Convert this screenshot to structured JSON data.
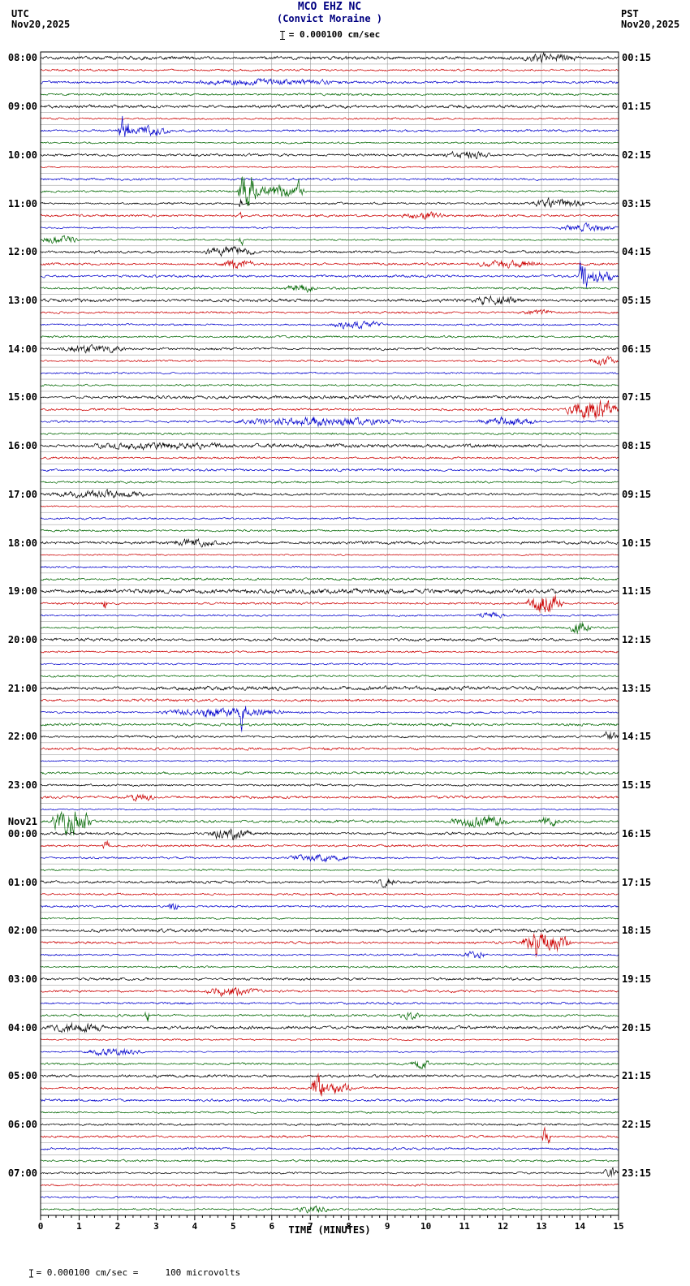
{
  "header": {
    "title": "MCO EHZ NC",
    "subtitle": "(Convict Moraine )",
    "left_tz": "UTC",
    "left_date": "Nov20,2025",
    "right_tz": "PST",
    "right_date": "Nov20,2025",
    "scale_text": "= 0.000100 cm/sec"
  },
  "footer": {
    "scale_note": "= 0.000100 cm/sec =     100 microvolts"
  },
  "colors": {
    "title": "#000080",
    "text": "#000000",
    "grid": "#8f8f8f",
    "border": "#000000"
  },
  "chart_data": {
    "type": "line",
    "title": "MCO EHZ NC (Convict Moraine) helicorder",
    "xlabel": "TIME (MINUTES)",
    "minutes_per_row": 15,
    "rows": 96,
    "rows_per_hour": 4,
    "x_ticks": [
      "0",
      "1",
      "2",
      "3",
      "4",
      "5",
      "6",
      "7",
      "8",
      "9",
      "10",
      "11",
      "12",
      "13",
      "14",
      "15"
    ],
    "trace_colors": [
      "#000000",
      "#cc0000",
      "#0000cc",
      "#006600"
    ],
    "left_labels": [
      {
        "row": 0,
        "text": "08:00"
      },
      {
        "row": 4,
        "text": "09:00"
      },
      {
        "row": 8,
        "text": "10:00"
      },
      {
        "row": 12,
        "text": "11:00"
      },
      {
        "row": 16,
        "text": "12:00"
      },
      {
        "row": 20,
        "text": "13:00"
      },
      {
        "row": 24,
        "text": "14:00"
      },
      {
        "row": 28,
        "text": "15:00"
      },
      {
        "row": 32,
        "text": "16:00"
      },
      {
        "row": 36,
        "text": "17:00"
      },
      {
        "row": 40,
        "text": "18:00"
      },
      {
        "row": 44,
        "text": "19:00"
      },
      {
        "row": 48,
        "text": "20:00"
      },
      {
        "row": 52,
        "text": "21:00"
      },
      {
        "row": 56,
        "text": "22:00"
      },
      {
        "row": 60,
        "text": "23:00"
      },
      {
        "row": 63,
        "text": "Nov21"
      },
      {
        "row": 64,
        "text": "00:00"
      },
      {
        "row": 68,
        "text": "01:00"
      },
      {
        "row": 72,
        "text": "02:00"
      },
      {
        "row": 76,
        "text": "03:00"
      },
      {
        "row": 80,
        "text": "04:00"
      },
      {
        "row": 84,
        "text": "05:00"
      },
      {
        "row": 88,
        "text": "06:00"
      },
      {
        "row": 92,
        "text": "07:00"
      }
    ],
    "right_labels": [
      {
        "row": 0,
        "text": "00:15"
      },
      {
        "row": 4,
        "text": "01:15"
      },
      {
        "row": 8,
        "text": "02:15"
      },
      {
        "row": 12,
        "text": "03:15"
      },
      {
        "row": 16,
        "text": "04:15"
      },
      {
        "row": 20,
        "text": "05:15"
      },
      {
        "row": 24,
        "text": "06:15"
      },
      {
        "row": 28,
        "text": "07:15"
      },
      {
        "row": 32,
        "text": "08:15"
      },
      {
        "row": 36,
        "text": "09:15"
      },
      {
        "row": 40,
        "text": "10:15"
      },
      {
        "row": 44,
        "text": "11:15"
      },
      {
        "row": 48,
        "text": "12:15"
      },
      {
        "row": 52,
        "text": "13:15"
      },
      {
        "row": 56,
        "text": "14:15"
      },
      {
        "row": 60,
        "text": "15:15"
      },
      {
        "row": 64,
        "text": "16:15"
      },
      {
        "row": 68,
        "text": "17:15"
      },
      {
        "row": 72,
        "text": "18:15"
      },
      {
        "row": 76,
        "text": "19:15"
      },
      {
        "row": 80,
        "text": "20:15"
      },
      {
        "row": 84,
        "text": "21:15"
      },
      {
        "row": 88,
        "text": "22:15"
      },
      {
        "row": 92,
        "text": "23:15"
      }
    ],
    "note": "96 fifteen-minute noise traces; visible bursts/spikes approximated below (row, start minute, duration min, amplitude px)",
    "events": [
      {
        "r": 0,
        "m": 12.5,
        "d": 1.5,
        "a": 2.5
      },
      {
        "r": 2,
        "m": 4.0,
        "d": 4.0,
        "a": 1.8
      },
      {
        "r": 6,
        "m": 2.0,
        "d": 0.35,
        "a": 11
      },
      {
        "r": 6,
        "m": 2.1,
        "d": 1.3,
        "a": 3.5
      },
      {
        "r": 8,
        "m": 10.4,
        "d": 1.3,
        "a": 2.2
      },
      {
        "r": 11,
        "m": 5.1,
        "d": 0.5,
        "a": 14
      },
      {
        "r": 11,
        "m": 5.3,
        "d": 1.6,
        "a": 4.5
      },
      {
        "r": 11,
        "m": 6.65,
        "d": 0.18,
        "a": 7
      },
      {
        "r": 12,
        "m": 12.6,
        "d": 1.6,
        "a": 3
      },
      {
        "r": 12,
        "m": 5.15,
        "d": 0.1,
        "a": 5
      },
      {
        "r": 13,
        "m": 9.3,
        "d": 1.2,
        "a": 2.5
      },
      {
        "r": 13,
        "m": 5.15,
        "d": 0.08,
        "a": 4
      },
      {
        "r": 14,
        "m": 13.4,
        "d": 1.6,
        "a": 2.5
      },
      {
        "r": 15,
        "m": 0.0,
        "d": 1.0,
        "a": 3
      },
      {
        "r": 15,
        "m": 5.15,
        "d": 0.12,
        "a": 6
      },
      {
        "r": 16,
        "m": 4.2,
        "d": 1.4,
        "a": 3.5
      },
      {
        "r": 17,
        "m": 4.6,
        "d": 1.0,
        "a": 3
      },
      {
        "r": 17,
        "m": 11.3,
        "d": 1.8,
        "a": 2.5
      },
      {
        "r": 18,
        "m": 13.95,
        "d": 0.25,
        "a": 12
      },
      {
        "r": 18,
        "m": 14.05,
        "d": 0.9,
        "a": 4
      },
      {
        "r": 19,
        "m": 6.3,
        "d": 0.9,
        "a": 3
      },
      {
        "r": 20,
        "m": 11.2,
        "d": 1.3,
        "a": 3
      },
      {
        "r": 21,
        "m": 12.5,
        "d": 0.8,
        "a": 2
      },
      {
        "r": 22,
        "m": 7.5,
        "d": 1.4,
        "a": 2.5
      },
      {
        "r": 24,
        "m": 0.5,
        "d": 1.8,
        "a": 2.5
      },
      {
        "r": 25,
        "m": 14.2,
        "d": 0.8,
        "a": 3
      },
      {
        "r": 28,
        "m": 0,
        "d": 15,
        "a": 0.6
      },
      {
        "r": 29,
        "m": 13.6,
        "d": 1.4,
        "a": 9
      },
      {
        "r": 30,
        "m": 5.0,
        "d": 4.5,
        "a": 3.2
      },
      {
        "r": 30,
        "m": 11.3,
        "d": 1.7,
        "a": 2.8
      },
      {
        "r": 32,
        "m": 0,
        "d": 15,
        "a": 0.9
      },
      {
        "r": 32,
        "m": 1.0,
        "d": 4.0,
        "a": 1.6
      },
      {
        "r": 36,
        "m": 0.2,
        "d": 2.8,
        "a": 2.2
      },
      {
        "r": 40,
        "m": 3.4,
        "d": 1.2,
        "a": 2.0
      },
      {
        "r": 44,
        "m": 0,
        "d": 15,
        "a": 0.8
      },
      {
        "r": 45,
        "m": 1.55,
        "d": 0.18,
        "a": 5
      },
      {
        "r": 45,
        "m": 12.6,
        "d": 1.0,
        "a": 8
      },
      {
        "r": 46,
        "m": 11.3,
        "d": 0.8,
        "a": 2.5
      },
      {
        "r": 47,
        "m": 13.7,
        "d": 0.6,
        "a": 5
      },
      {
        "r": 52,
        "m": 0,
        "d": 15,
        "a": 0.5
      },
      {
        "r": 54,
        "m": 3.0,
        "d": 3.5,
        "a": 3.2
      },
      {
        "r": 54,
        "m": 5.15,
        "d": 0.2,
        "a": 9
      },
      {
        "r": 56,
        "m": 14.55,
        "d": 0.45,
        "a": 4
      },
      {
        "r": 61,
        "m": 2.2,
        "d": 0.8,
        "a": 2.5
      },
      {
        "r": 63,
        "m": 0.25,
        "d": 1.1,
        "a": 10
      },
      {
        "r": 63,
        "m": 10.6,
        "d": 1.6,
        "a": 4
      },
      {
        "r": 63,
        "m": 12.9,
        "d": 0.6,
        "a": 3
      },
      {
        "r": 64,
        "m": 4.3,
        "d": 1.2,
        "a": 4
      },
      {
        "r": 65,
        "m": 1.6,
        "d": 0.2,
        "a": 4
      },
      {
        "r": 66,
        "m": 6.4,
        "d": 1.6,
        "a": 2.2
      },
      {
        "r": 68,
        "m": 8.7,
        "d": 0.5,
        "a": 3
      },
      {
        "r": 70,
        "m": 3.3,
        "d": 0.3,
        "a": 3
      },
      {
        "r": 73,
        "m": 12.4,
        "d": 1.4,
        "a": 7
      },
      {
        "r": 73,
        "m": 12.75,
        "d": 0.15,
        "a": 11
      },
      {
        "r": 74,
        "m": 10.9,
        "d": 0.7,
        "a": 3
      },
      {
        "r": 77,
        "m": 4.2,
        "d": 1.5,
        "a": 2.8
      },
      {
        "r": 79,
        "m": 2.7,
        "d": 0.15,
        "a": 5
      },
      {
        "r": 79,
        "m": 9.3,
        "d": 0.6,
        "a": 3
      },
      {
        "r": 80,
        "m": 0.2,
        "d": 1.5,
        "a": 2.8
      },
      {
        "r": 82,
        "m": 1.1,
        "d": 1.6,
        "a": 2.8
      },
      {
        "r": 83,
        "m": 9.6,
        "d": 0.5,
        "a": 3.5
      },
      {
        "r": 85,
        "m": 7.0,
        "d": 0.35,
        "a": 12
      },
      {
        "r": 85,
        "m": 7.1,
        "d": 1.0,
        "a": 4
      },
      {
        "r": 89,
        "m": 13.0,
        "d": 0.25,
        "a": 6
      },
      {
        "r": 92,
        "m": 14.6,
        "d": 0.4,
        "a": 4
      },
      {
        "r": 95,
        "m": 6.6,
        "d": 1.0,
        "a": 2
      }
    ]
  }
}
